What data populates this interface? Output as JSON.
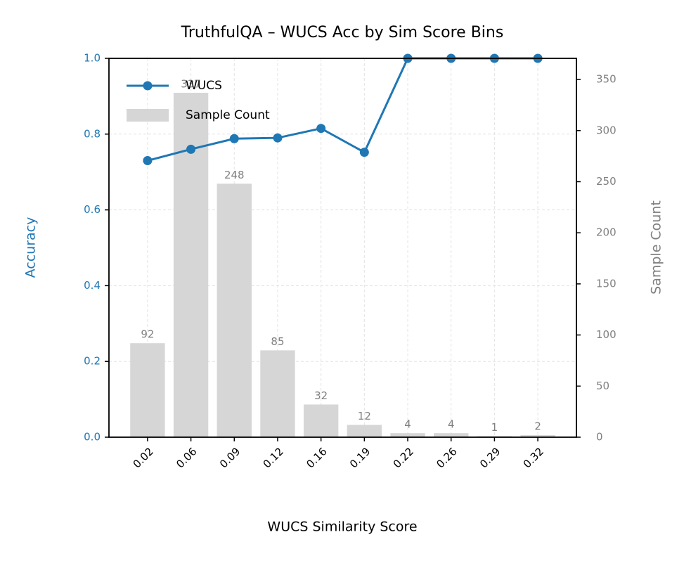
{
  "chart_data": {
    "type": "bar",
    "title": "TruthfulQA – WUCS Acc by Sim Score Bins",
    "x_label": "WUCS Similarity Score",
    "y_label": "Accuracy",
    "y2_label": "Sample Count",
    "categories": [
      "0.02",
      "0.06",
      "0.09",
      "0.12",
      "0.16",
      "0.19",
      "0.22",
      "0.26",
      "0.29",
      "0.32"
    ],
    "series": [
      {
        "name": "WUCS",
        "type": "line",
        "color": "#1f77b4",
        "axis": "y",
        "values": [
          0.73,
          0.76,
          0.788,
          0.79,
          0.815,
          0.752,
          1.0,
          1.0,
          1.0,
          1.0
        ]
      },
      {
        "name": "Sample Count",
        "type": "bar",
        "color": "#d6d6d6",
        "axis": "y2",
        "values": [
          92,
          337,
          248,
          85,
          32,
          12,
          4,
          4,
          1,
          2
        ]
      }
    ],
    "ylim": [
      0,
      1
    ],
    "yticks": [
      {
        "value": 0,
        "label": "0.0"
      },
      0.2,
      0.4,
      0.6,
      0.8,
      {
        "value": 1,
        "label": "1.0"
      }
    ],
    "y2lim": [
      0,
      370.7
    ],
    "y2ticks": [
      0,
      50,
      100,
      150,
      200,
      250,
      300,
      350
    ],
    "grid": true,
    "legend": "upper left"
  }
}
